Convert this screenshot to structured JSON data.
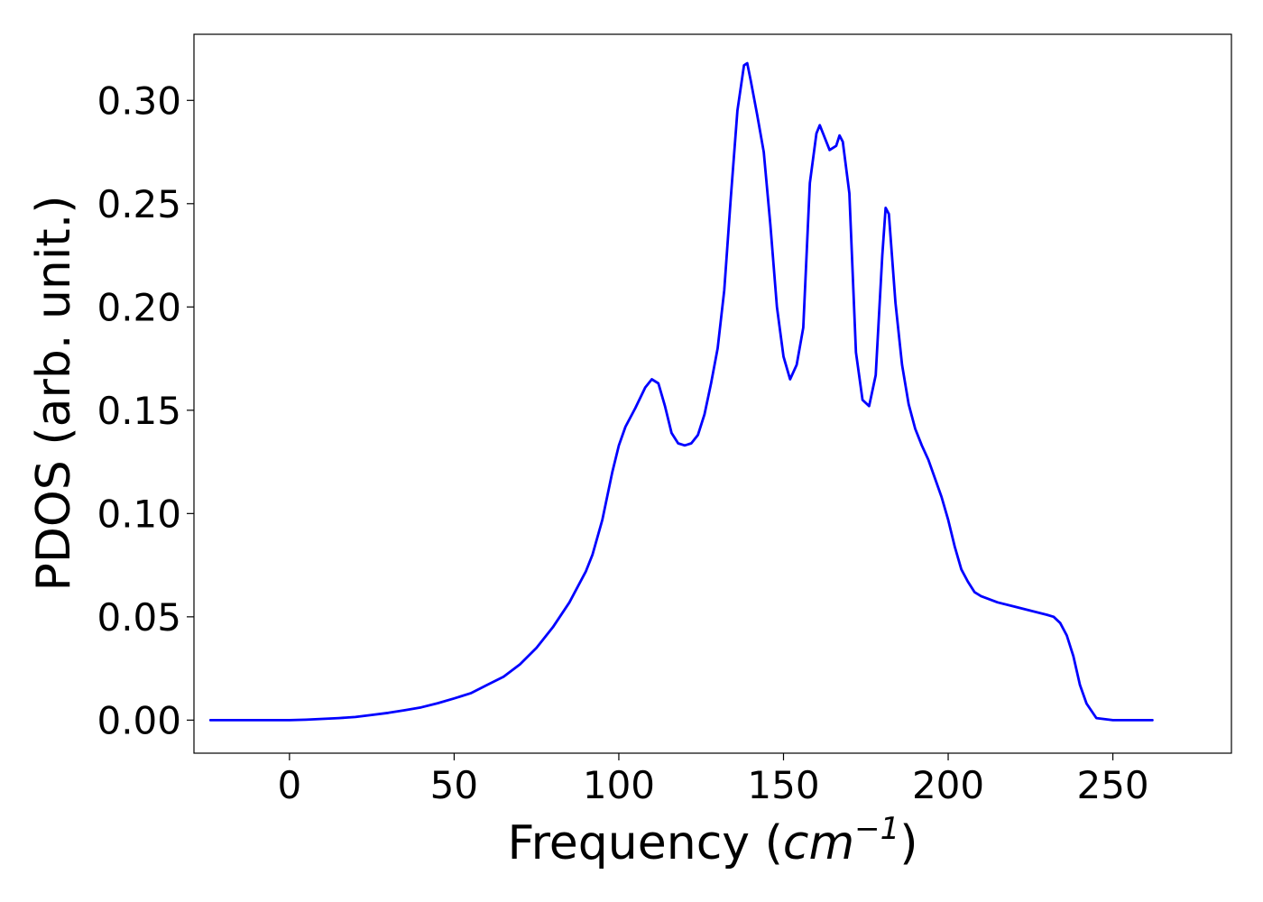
{
  "chart_data": {
    "type": "line",
    "title": "",
    "xlabel": {
      "prefix": "Frequency (",
      "math": "cm",
      "superscript": "−1",
      "suffix": ")"
    },
    "ylabel": "PDOS (arb. unit.)",
    "xlim": [
      -29,
      286
    ],
    "ylim": [
      -0.016,
      0.332
    ],
    "xticks": [
      0,
      50,
      100,
      150,
      200,
      250
    ],
    "xtick_labels": [
      "0",
      "50",
      "100",
      "150",
      "200",
      "250"
    ],
    "yticks": [
      0.0,
      0.05,
      0.1,
      0.15,
      0.2,
      0.25,
      0.3
    ],
    "ytick_labels": [
      "0.00",
      "0.05",
      "0.10",
      "0.15",
      "0.20",
      "0.25",
      "0.30"
    ],
    "grid": false,
    "line_color": "#0000ff",
    "series": [
      {
        "x": [
          -24,
          -10,
          0,
          5,
          10,
          15,
          20,
          25,
          30,
          35,
          40,
          45,
          50,
          55,
          60,
          65,
          70,
          75,
          80,
          85,
          90,
          92,
          95,
          98,
          100,
          102,
          105,
          108,
          110,
          112,
          114,
          116,
          118,
          120,
          122,
          124,
          126,
          128,
          130,
          132,
          134,
          136,
          138,
          139,
          140,
          142,
          144,
          146,
          148,
          150,
          152,
          154,
          156,
          158,
          160,
          161,
          162,
          164,
          166,
          167,
          168,
          170,
          172,
          174,
          176,
          178,
          180,
          181,
          182,
          184,
          186,
          188,
          190,
          192,
          194,
          196,
          198,
          200,
          202,
          204,
          206,
          208,
          210,
          215,
          220,
          225,
          230,
          232,
          234,
          236,
          238,
          240,
          242,
          245,
          250,
          255,
          262
        ],
        "y": [
          0.0,
          0.0,
          0.0,
          0.0002,
          0.0006,
          0.001,
          0.0015,
          0.0025,
          0.0035,
          0.0048,
          0.0062,
          0.0082,
          0.0105,
          0.013,
          0.017,
          0.021,
          0.027,
          0.035,
          0.045,
          0.057,
          0.072,
          0.08,
          0.097,
          0.12,
          0.133,
          0.142,
          0.151,
          0.161,
          0.165,
          0.163,
          0.152,
          0.139,
          0.134,
          0.133,
          0.134,
          0.138,
          0.148,
          0.163,
          0.18,
          0.208,
          0.253,
          0.295,
          0.317,
          0.318,
          0.31,
          0.293,
          0.275,
          0.24,
          0.2,
          0.176,
          0.165,
          0.172,
          0.19,
          0.26,
          0.284,
          0.288,
          0.284,
          0.276,
          0.278,
          0.283,
          0.28,
          0.255,
          0.178,
          0.155,
          0.152,
          0.167,
          0.225,
          0.248,
          0.245,
          0.202,
          0.172,
          0.153,
          0.141,
          0.133,
          0.126,
          0.117,
          0.108,
          0.097,
          0.084,
          0.073,
          0.067,
          0.062,
          0.06,
          0.057,
          0.055,
          0.053,
          0.051,
          0.05,
          0.047,
          0.041,
          0.031,
          0.017,
          0.008,
          0.001,
          0.0,
          0.0,
          0.0
        ]
      }
    ]
  }
}
